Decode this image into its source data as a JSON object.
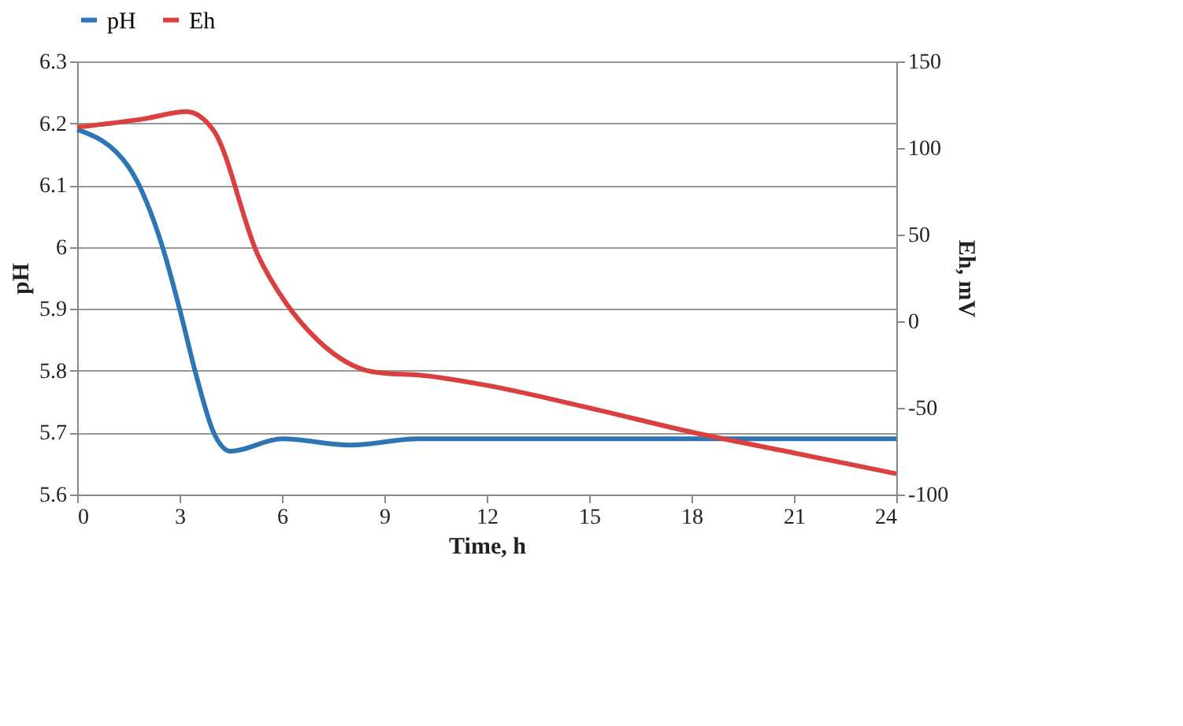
{
  "chart_data": {
    "type": "line",
    "xlabel": "Time, h",
    "ylabel": "pH",
    "y2label": "Eh, mV",
    "xlim": [
      0,
      24
    ],
    "xticks": [
      0,
      3,
      6,
      9,
      12,
      15,
      18,
      21,
      24
    ],
    "ylim": [
      5.6,
      6.3
    ],
    "yticks": [
      5.6,
      5.7,
      5.8,
      5.9,
      6,
      6.1,
      6.2,
      6.3
    ],
    "y2lim": [
      -100,
      150
    ],
    "y2ticks": [
      -100,
      -50,
      0,
      50,
      100,
      150
    ],
    "grid": "y",
    "legend": "top",
    "marker": "none",
    "line_style": "solid",
    "series": [
      {
        "name": "pH",
        "color": "#2e75b6",
        "x": [
          0,
          1.5,
          2.5,
          3,
          3.5,
          4,
          4.5,
          6,
          8,
          10,
          12,
          15,
          18,
          21,
          24
        ],
        "values": [
          6.19,
          6.13,
          6.0,
          5.9,
          5.79,
          5.7,
          5.67,
          5.69,
          5.68,
          5.69,
          5.69,
          5.69,
          5.69,
          5.69,
          5.69
        ]
      },
      {
        "name": "Eh",
        "color": "#d9403f",
        "axis": "y2",
        "x": [
          0,
          2,
          3.2,
          4,
          5.3,
          6.1,
          7,
          8.4,
          9,
          10,
          12,
          15,
          18,
          21,
          24
        ],
        "values": [
          112,
          117,
          121,
          110,
          38,
          11,
          -10,
          -28,
          -30,
          -31,
          -37,
          -50,
          -64,
          -76,
          -88
        ]
      }
    ]
  }
}
